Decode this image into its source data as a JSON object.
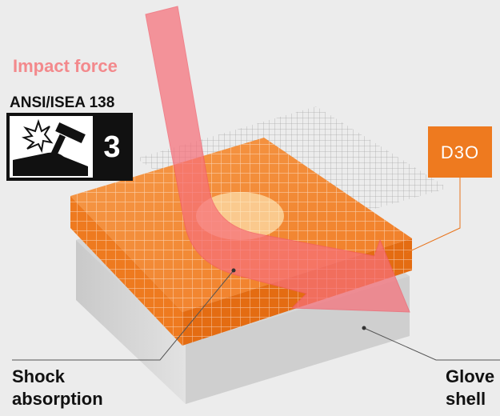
{
  "title": "Impact force",
  "standard": "ANSI/ISEA 138",
  "level": 3,
  "brand": "D3O",
  "labels": [
    {
      "lines": [
        "Shock",
        "absorption"
      ]
    },
    {
      "lines": [
        "Glove",
        "shell"
      ]
    }
  ]
}
